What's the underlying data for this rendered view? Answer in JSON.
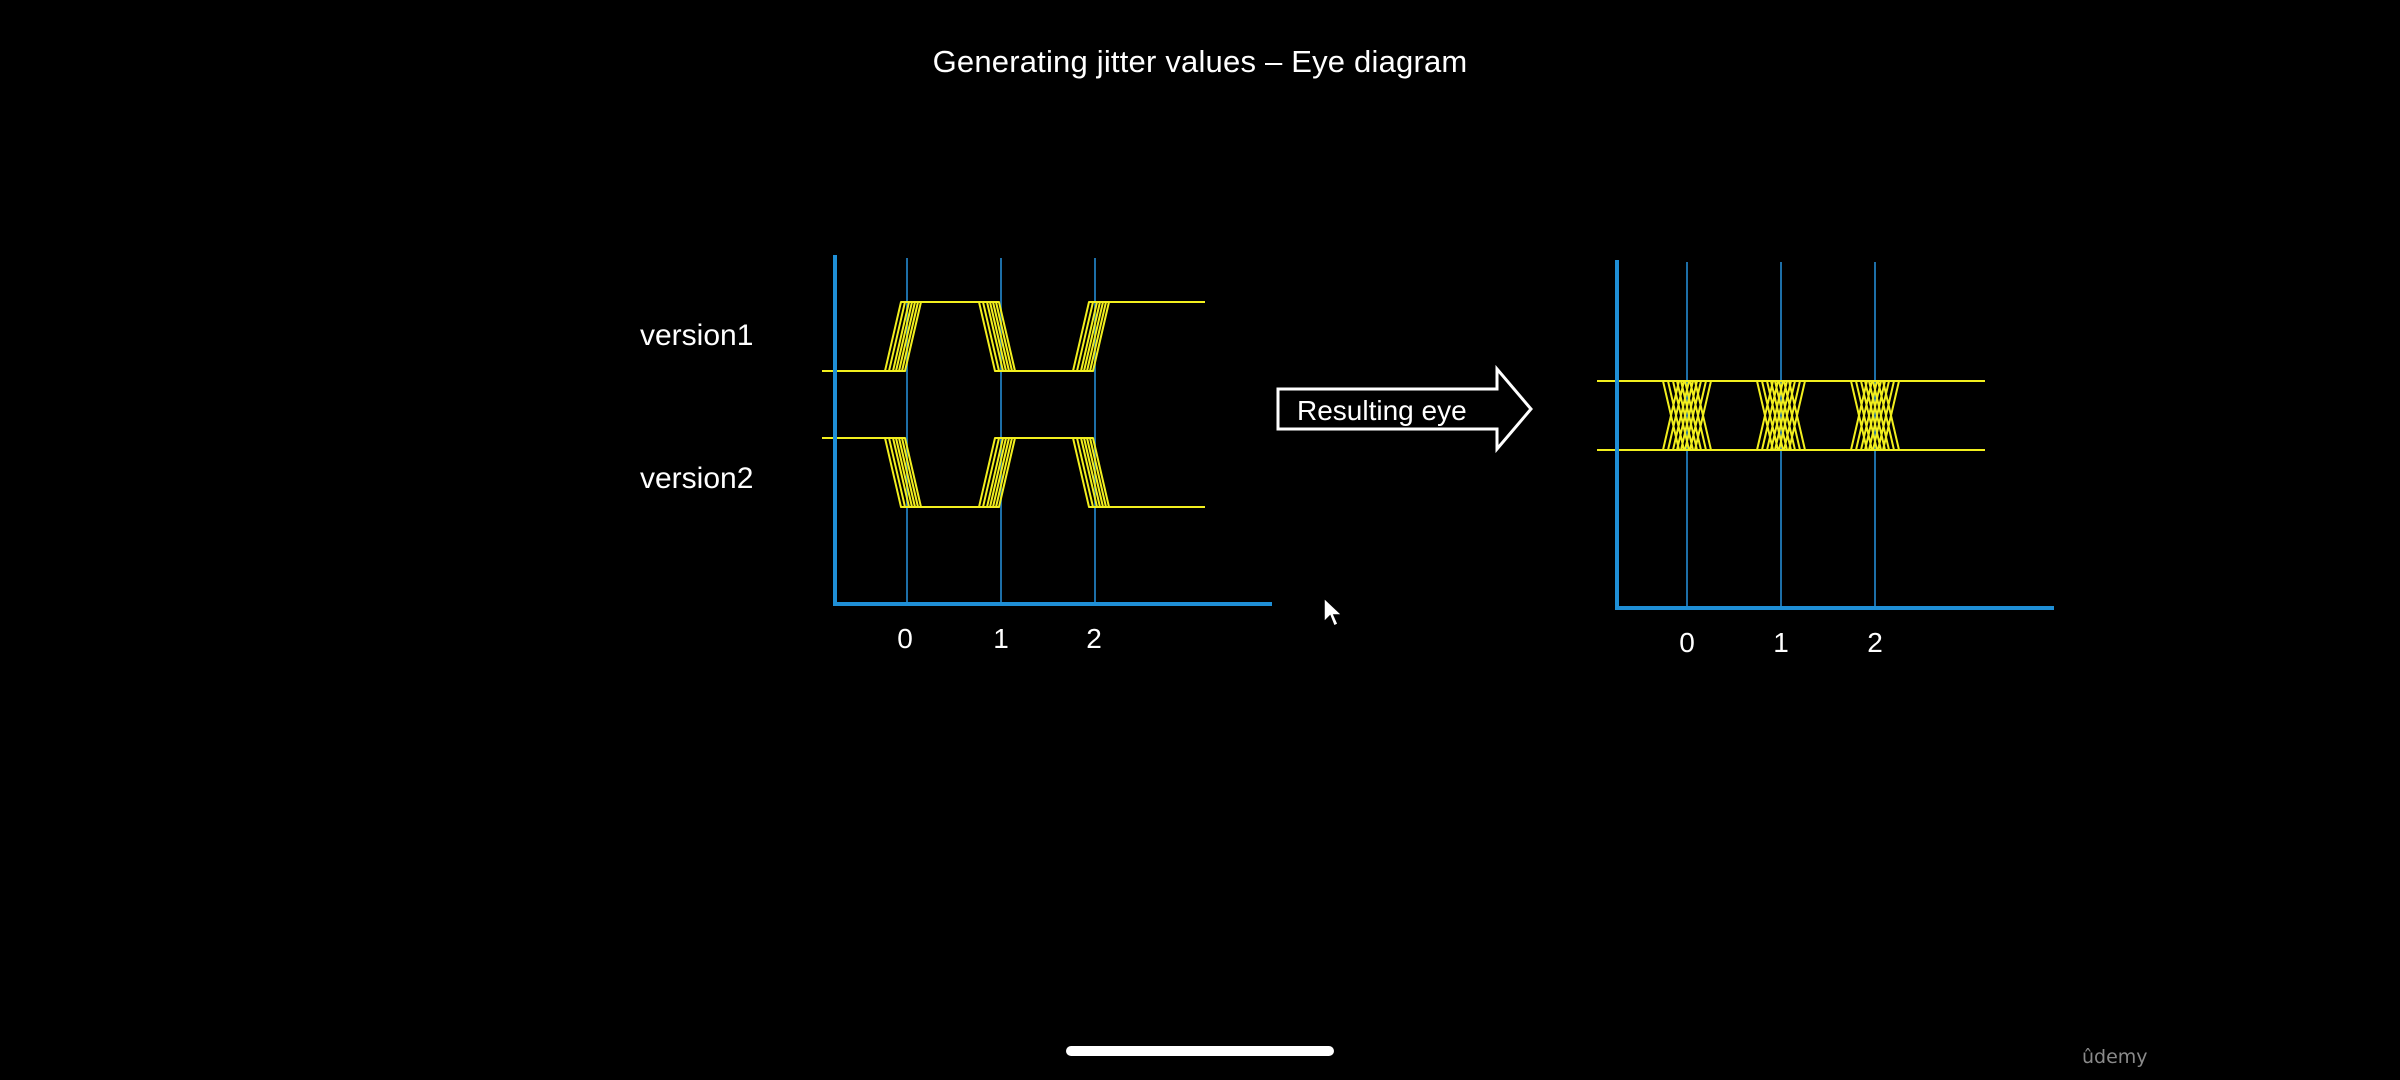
{
  "title": "Generating jitter values – Eye diagram",
  "colors": {
    "background": "#000000",
    "axis": "#1f8fd6",
    "gridline": "#1d6fa8",
    "waveform": "#f2ef1e",
    "text": "#ffffff"
  },
  "left_diagram": {
    "rows": [
      {
        "label": "version1",
        "bits": [
          0,
          1,
          0,
          1
        ]
      },
      {
        "label": "version2",
        "bits": [
          1,
          0,
          1,
          0
        ]
      }
    ],
    "x_ticks": [
      "0",
      "1",
      "2"
    ]
  },
  "arrow": {
    "label": "Resulting eye"
  },
  "right_diagram": {
    "x_ticks": [
      "0",
      "1",
      "2"
    ]
  },
  "watermark": "ûdemy",
  "icons": [
    "mouse-cursor-icon"
  ]
}
